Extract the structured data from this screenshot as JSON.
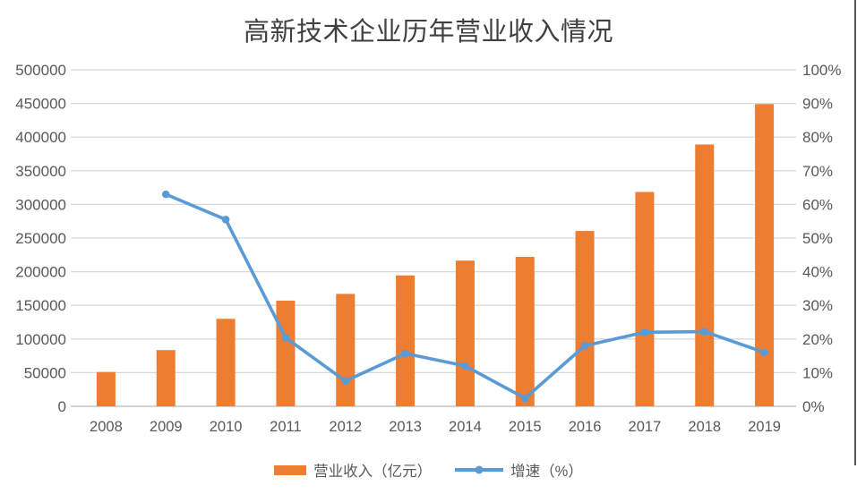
{
  "chart_data": {
    "type": "bar",
    "combo": "bar + line (dual axis)",
    "title": "高新技术企业历年营业收入情况",
    "categories": [
      "2008",
      "2009",
      "2010",
      "2011",
      "2012",
      "2013",
      "2014",
      "2015",
      "2016",
      "2017",
      "2018",
      "2019"
    ],
    "series": [
      {
        "name": "营业收入（亿元）",
        "type": "bar",
        "axis": "left",
        "color": "#ED7D31",
        "values": [
          51000,
          83500,
          130000,
          157000,
          167000,
          194500,
          216500,
          222000,
          260500,
          318500,
          389000,
          449000
        ]
      },
      {
        "name": "增速（%）",
        "type": "line",
        "axis": "right",
        "color": "#5B9BD5",
        "values": [
          null,
          63,
          55.5,
          20.4,
          7.5,
          15.7,
          12,
          2.4,
          18,
          22,
          22.2,
          16
        ]
      }
    ],
    "left_axis": {
      "min": 0,
      "max": 500000,
      "step": 50000,
      "ticks": [
        "0",
        "50000",
        "100000",
        "150000",
        "200000",
        "250000",
        "300000",
        "350000",
        "400000",
        "450000",
        "500000"
      ]
    },
    "right_axis": {
      "min": 0,
      "max": 100,
      "step": 10,
      "ticks": [
        "0%",
        "10%",
        "20%",
        "30%",
        "40%",
        "50%",
        "60%",
        "70%",
        "80%",
        "90%",
        "100%"
      ]
    },
    "grid": true,
    "gridline_color": "#D9D9D9",
    "axis_text_color": "#595959",
    "legend_position": "bottom"
  }
}
